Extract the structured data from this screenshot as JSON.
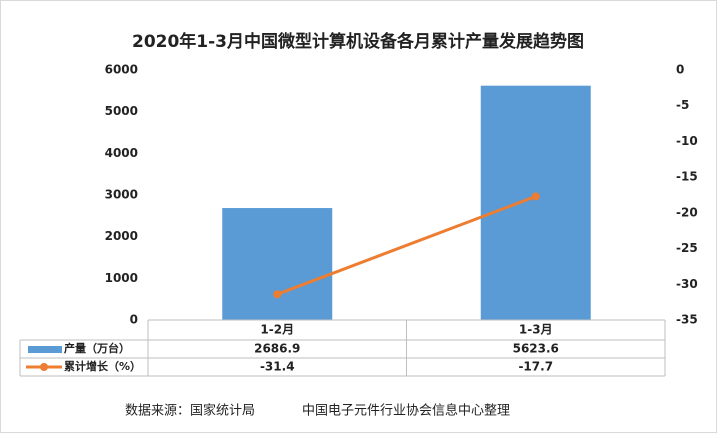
{
  "chart_data": {
    "type": "bar-line",
    "title": "2020年1-3月中国微型计算机设备各月累计产量发展趋势图",
    "categories": [
      "1-2月",
      "1-3月"
    ],
    "series": [
      {
        "name": "产量（万台）",
        "type": "bar",
        "color": "#5b9bd5",
        "values": [
          2686.9,
          5623.6
        ]
      },
      {
        "name": "累计增长（%）",
        "type": "line",
        "color": "#ed7d31",
        "axis": "y2",
        "values": [
          -31.4,
          -17.7
        ]
      }
    ],
    "ylim": [
      0,
      6000
    ],
    "yticks": [
      0,
      1000,
      2000,
      3000,
      4000,
      5000,
      6000
    ],
    "y2lim": [
      -35,
      0
    ],
    "y2ticks": [
      0,
      -5,
      -10,
      -15,
      -20,
      -25,
      -30,
      -35
    ],
    "data_table": true,
    "footer": {
      "source": "数据来源：国家统计局",
      "note": "中国电子元件行业协会信息中心整理"
    }
  }
}
